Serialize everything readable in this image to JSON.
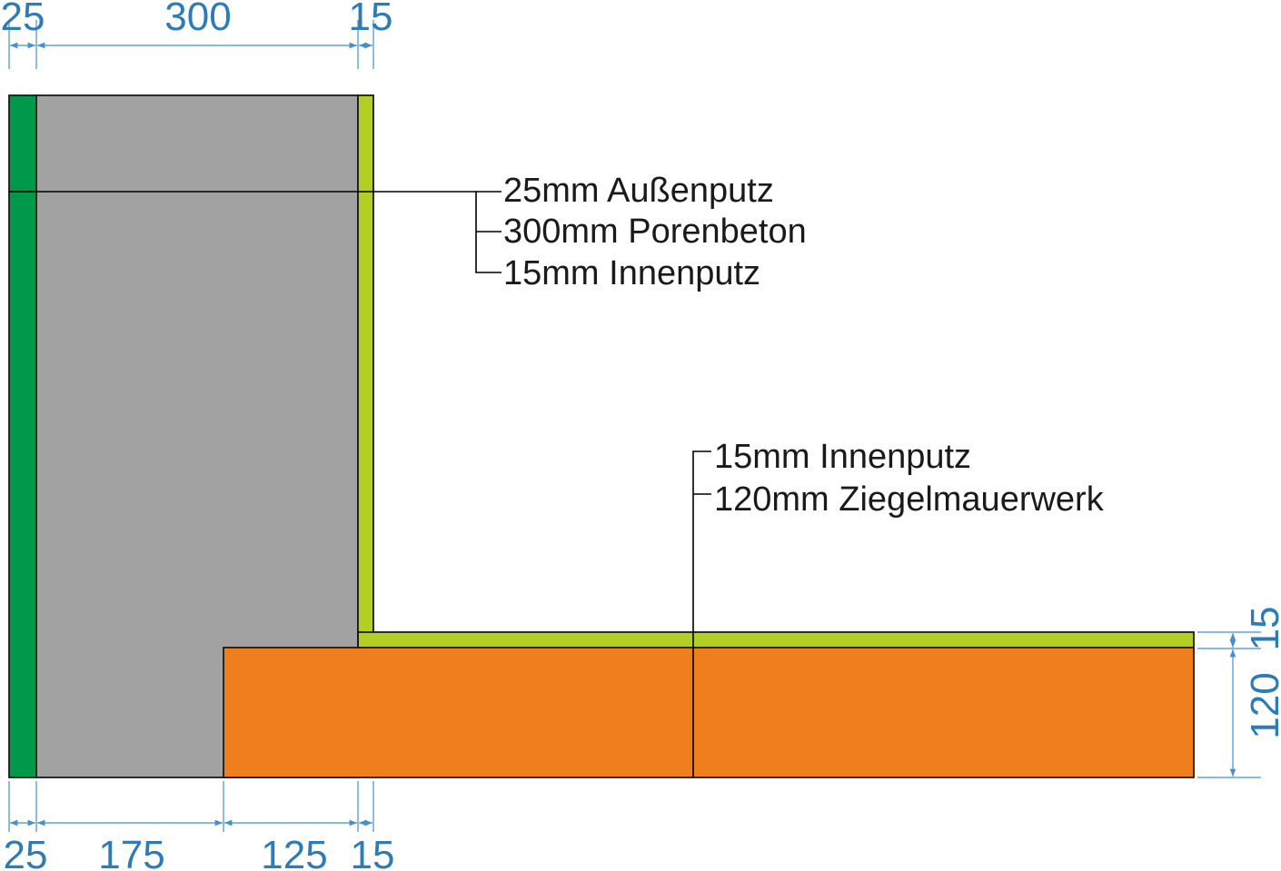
{
  "colors": {
    "outer_plaster": "#00994a",
    "aerated_concrete": "#a1a2a1",
    "inner_plaster": "#b2cf24",
    "brick": "#ee7f1c",
    "dimension": "#2e7bb6"
  },
  "dimensions": {
    "top": [
      "25",
      "300",
      "15"
    ],
    "bottom": [
      "25",
      "175",
      "125",
      "15"
    ],
    "right": [
      "15",
      "120"
    ]
  },
  "labels": {
    "outer_wall": [
      "25mm Außenputz",
      "300mm Porenbeton",
      "15mm Innenputz"
    ],
    "inner_wall": [
      "15mm Innenputz",
      "120mm Ziegelmauerwerk"
    ]
  }
}
